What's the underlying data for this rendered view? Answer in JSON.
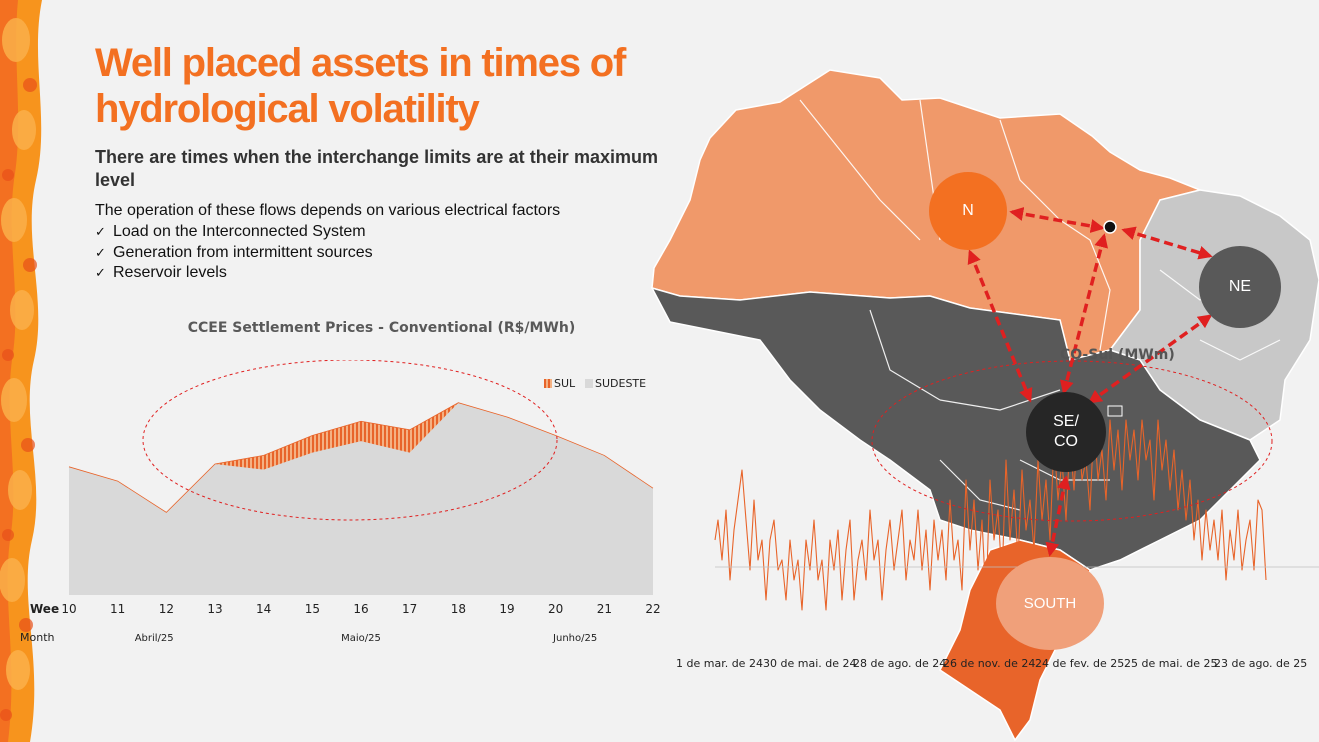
{
  "title": "Well placed assets in times of hydrological volatility",
  "subtitle": "There are times when the interchange limits are at their maximum level",
  "intro": "The operation of these flows depends on various electrical factors",
  "bullets": [
    "Load on the Interconnected System",
    "Generation from intermittent sources",
    "Reservoir levels"
  ],
  "check_glyph": "✓",
  "colors": {
    "accent": "#f37021",
    "sul": "#e8642a",
    "sudeste": "#d9d9d9",
    "north_state": "#f0996a",
    "southeast_state": "#595959",
    "northeast_state": "#c8c8c8",
    "south_state": "#e8642a"
  },
  "chart_data": {
    "type": "area",
    "title": "CCEE Settlement Prices - Conventional (R$/MWh)",
    "x_row_label": "Wee",
    "month_row_label": "Month",
    "x": [
      10,
      11,
      12,
      13,
      14,
      15,
      16,
      17,
      18,
      19,
      20,
      21,
      22
    ],
    "months": [
      "Abril/25",
      "Maio/25",
      "Junho/25"
    ],
    "series": [
      {
        "name": "SUL",
        "values": [
          90,
          80,
          58,
          92,
          98,
          112,
          122,
          116,
          135,
          125,
          112,
          98,
          75
        ]
      },
      {
        "name": "SUDESTE",
        "values": [
          90,
          80,
          58,
          92,
          88,
          100,
          108,
          100,
          135,
          125,
          112,
          98,
          75
        ]
      }
    ],
    "ylim": [
      0,
      165
    ],
    "legend": "top-right",
    "annotation": "dashed ellipse highlighting weeks 12-20"
  },
  "map": {
    "regions": [
      {
        "id": "N",
        "label": "N"
      },
      {
        "id": "NE",
        "label": "NE"
      },
      {
        "id": "SECO",
        "label": "SE/\nCO"
      },
      {
        "id": "SOUTH",
        "label": "SOUTH"
      }
    ],
    "series_label": "CO-Sul (MWm)",
    "dates": [
      "1 de mar. de 24",
      "30 de mai. de 24",
      "28 de ago. de 24",
      "26 de nov. de 24",
      "24 de fev. de 25",
      "25 de mai. de 25",
      "23 de ago. de 25"
    ]
  }
}
